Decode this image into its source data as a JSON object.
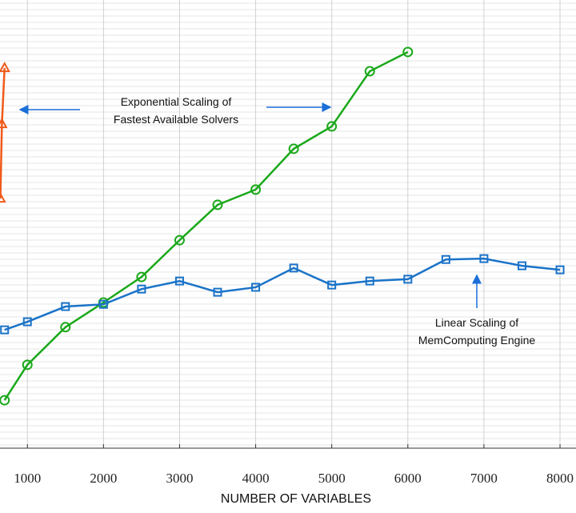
{
  "chart_data": {
    "type": "line",
    "xlabel": "NUMBER OF VARIABLES",
    "xlim": [
      640,
      8210
    ],
    "ylim": [
      0,
      100
    ],
    "xticks": [
      1000,
      2000,
      3000,
      4000,
      5000,
      6000,
      7000,
      8000
    ],
    "grid": true,
    "series": [
      {
        "color": "#f05a1a",
        "marker": "triangle",
        "x": [
          645,
          665,
          700
        ],
        "values": [
          55.7,
          72.3,
          84.8
        ]
      },
      {
        "color": "#1aa81a",
        "marker": "circle",
        "x": [
          700,
          1000,
          1500,
          2000,
          2500,
          3000,
          3500,
          4000,
          4500,
          5000,
          5500,
          6000
        ],
        "values": [
          10.7,
          18.6,
          27.0,
          32.5,
          38.2,
          46.4,
          54.3,
          57.7,
          66.8,
          71.8,
          84.1,
          88.4
        ]
      },
      {
        "color": "#1a73c8",
        "marker": "square",
        "x": [
          700,
          1000,
          1500,
          2000,
          2500,
          3000,
          3500,
          4000,
          4500,
          5000,
          5500,
          6000,
          6500,
          7000,
          7500,
          8000
        ],
        "values": [
          26.4,
          28.2,
          31.6,
          32.1,
          35.5,
          37.3,
          34.8,
          35.9,
          40.2,
          36.4,
          37.3,
          37.7,
          42.1,
          42.3,
          40.7,
          39.8
        ]
      }
    ],
    "annotations": [
      "Exponential Scaling of",
      "Fastest Available Solvers",
      "Linear Scaling of",
      "MemComputing Engine"
    ]
  }
}
